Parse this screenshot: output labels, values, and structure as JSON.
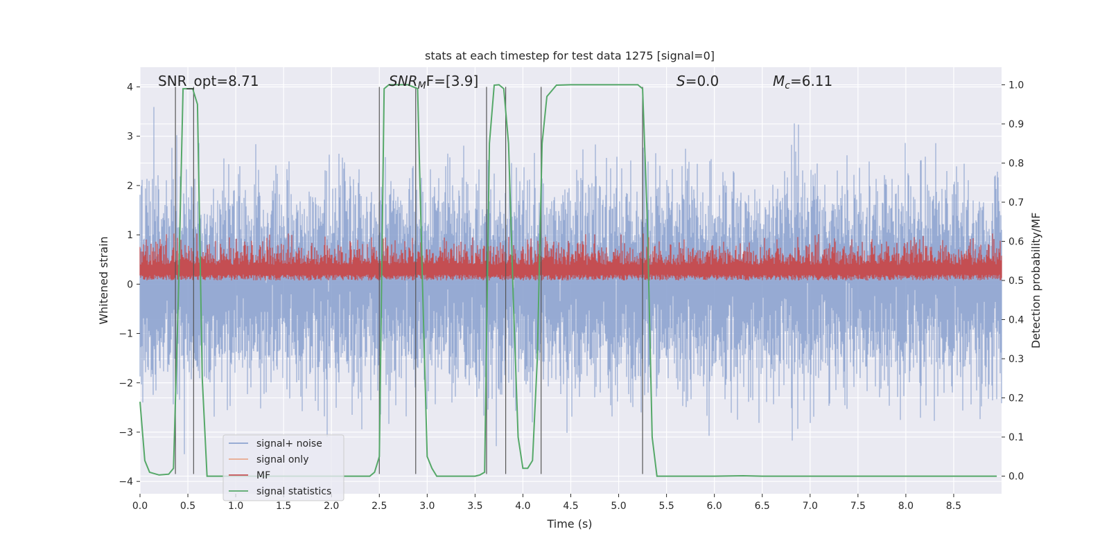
{
  "chart_data": {
    "type": "line",
    "title": "stats at each timestep for test data 1275 [signal=0]",
    "xlabel": "Time (s)",
    "ylabel_left": "Whitened strain",
    "ylabel_right": "Detection probability/MF",
    "xlim": [
      0.0,
      9.0
    ],
    "ylim_left": [
      -4.25,
      4.4
    ],
    "ylim_right": [
      -0.045,
      1.045
    ],
    "x_ticks": [
      "0.0",
      "0.5",
      "1.0",
      "1.5",
      "2.0",
      "2.5",
      "3.0",
      "3.5",
      "4.0",
      "4.5",
      "5.0",
      "5.5",
      "6.0",
      "6.5",
      "7.0",
      "7.5",
      "8.0",
      "8.5"
    ],
    "y_left_ticks": [
      "4",
      "3",
      "2",
      "1",
      "0",
      "−1",
      "−2",
      "−3",
      "−4"
    ],
    "y_right_ticks": [
      "1.0",
      "0.9",
      "0.8",
      "0.7",
      "0.6",
      "0.5",
      "0.4",
      "0.3",
      "0.2",
      "0.1",
      "0.0"
    ],
    "annotations": {
      "snr_opt": "SNR_opt=8.71",
      "snr_mf_sym": "SNR",
      "snr_mf_sub": "M",
      "snr_mf_rest": "F=[3.9]",
      "s_sym": "S",
      "s_rest": "=0.0",
      "mc_sym": "M",
      "mc_sub": "c",
      "mc_rest": "=6.11"
    },
    "legend": {
      "position": "lower-left",
      "entries": [
        "signal+ noise",
        "signal only",
        "MF",
        "signal statistics"
      ]
    },
    "colors": {
      "noise": "#8da3cf",
      "signal_only": "#e9a98c",
      "mf": "#c44e52",
      "stats": "#55a868",
      "vlines": "#555555",
      "plot_bg": "#eaeaf2",
      "grid": "#ffffff"
    },
    "noise_series": {
      "name": "signal+ noise",
      "x_range": [
        0.0,
        9.0
      ],
      "mean": 0.0,
      "std": 1.1,
      "typical_peak": 3.5
    },
    "mf_series": {
      "name": "MF",
      "x_range": [
        0.0,
        9.0
      ],
      "min": 0.5,
      "max": 0.62,
      "mean": 0.54
    },
    "detection_threshold_lines_x": [
      0.37,
      0.56,
      2.5,
      2.88,
      3.62,
      3.82,
      4.19,
      5.25
    ],
    "stats_series": {
      "name": "signal statistics",
      "x": [
        0.0,
        0.05,
        0.1,
        0.2,
        0.3,
        0.35,
        0.4,
        0.45,
        0.55,
        0.6,
        0.65,
        0.7,
        0.9,
        1.5,
        2.0,
        2.4,
        2.45,
        2.5,
        2.55,
        2.6,
        2.8,
        2.9,
        2.95,
        3.0,
        3.05,
        3.1,
        3.5,
        3.55,
        3.6,
        3.65,
        3.7,
        3.75,
        3.8,
        3.85,
        3.9,
        3.95,
        4.0,
        4.05,
        4.1,
        4.15,
        4.2,
        4.25,
        4.35,
        4.5,
        5.0,
        5.2,
        5.25,
        5.3,
        5.35,
        5.4,
        5.5,
        6.0,
        6.3,
        6.5,
        7.0,
        8.0,
        8.95
      ],
      "y": [
        0.19,
        0.04,
        0.01,
        0.003,
        0.005,
        0.02,
        0.45,
        0.99,
        0.99,
        0.95,
        0.25,
        0.0,
        0.0,
        0.0,
        0.0,
        0.0,
        0.01,
        0.05,
        0.99,
        1.0,
        1.0,
        0.99,
        0.5,
        0.05,
        0.02,
        0.0,
        0.0,
        0.003,
        0.01,
        0.85,
        0.999,
        1.0,
        0.99,
        0.85,
        0.45,
        0.1,
        0.02,
        0.02,
        0.04,
        0.3,
        0.85,
        0.97,
        0.999,
        1.0,
        1.0,
        1.0,
        0.99,
        0.65,
        0.1,
        0.0,
        0.0,
        0.0,
        0.001,
        0.0,
        0.0,
        0.0,
        0.0
      ]
    }
  }
}
